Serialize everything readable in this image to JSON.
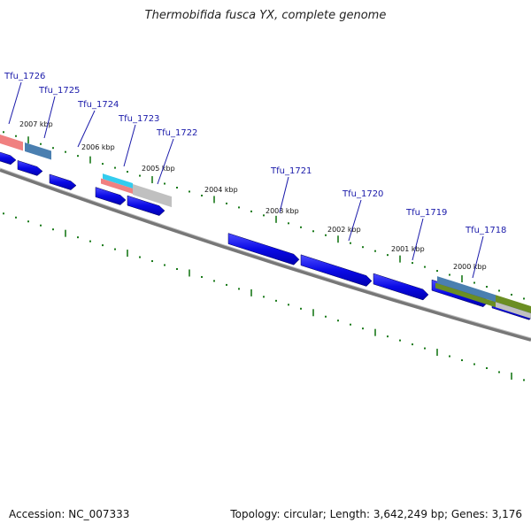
{
  "title": "Thermobifida fusca YX, complete genome",
  "accession": "Accession: NC_007333",
  "summary": "Topology: circular; Length: 3,642,249 bp; Genes: 3,176",
  "colors": {
    "cds": "#0a0ae6",
    "backbone": "#777777",
    "tick": "#1a7a1a",
    "label": "#1a1aaa",
    "pink": "#f08080",
    "steel": "#4a7fb0",
    "cyan": "#33ccee",
    "gray": "#c0c0c0",
    "olive": "#6b8e23"
  },
  "gene_labels": [
    "Tfu_1726",
    "Tfu_1725",
    "Tfu_1724",
    "Tfu_1723",
    "Tfu_1722",
    "Tfu_1721",
    "Tfu_1720",
    "Tfu_1719",
    "Tfu_1718"
  ],
  "kbp_labels": [
    "2007 kbp",
    "2006 kbp",
    "2005 kbp",
    "2004 kbp",
    "2003 kbp",
    "2002 kbp",
    "2001 kbp",
    "2000 kbp"
  ]
}
